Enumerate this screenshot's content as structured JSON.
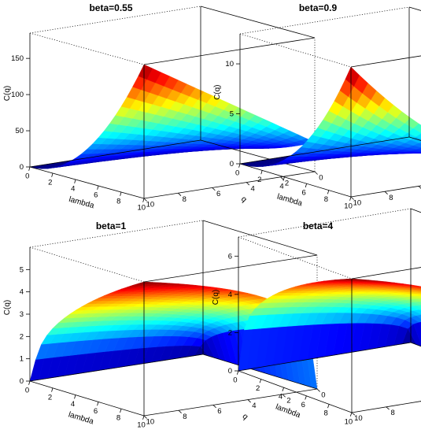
{
  "chart_data": [
    {
      "type": "surface3d",
      "title": "beta=0.55",
      "beta": 0.55,
      "xlabel": "lambda",
      "ylabel": "q",
      "zlabel": "C(q)",
      "x_range": [
        0,
        10
      ],
      "y_range": [
        0,
        10
      ],
      "z_range": [
        0,
        185
      ],
      "x_ticks": [
        0,
        2,
        4,
        6,
        8,
        10
      ],
      "y_ticks": [
        0,
        2,
        4,
        6,
        8,
        10
      ],
      "z_ticks": [
        0,
        50,
        100,
        150
      ],
      "corner_values": {
        "lambda0_q0": 0,
        "lambda10_q0": 185,
        "lambda0_q10": 0,
        "lambda10_q10": 40
      },
      "colormap": "jet"
    },
    {
      "type": "surface3d",
      "title": "beta=0.9",
      "beta": 0.9,
      "xlabel": "lambda",
      "ylabel": "q",
      "zlabel": "C(q)",
      "x_range": [
        0,
        10
      ],
      "y_range": [
        0,
        10
      ],
      "z_range": [
        0,
        13
      ],
      "x_ticks": [
        0,
        2,
        4,
        6,
        8,
        10
      ],
      "y_ticks": [
        0,
        2,
        4,
        6,
        8,
        10
      ],
      "z_ticks": [
        0,
        5,
        10
      ],
      "corner_values": {
        "lambda0_q0": 0,
        "lambda10_q0": 13,
        "lambda0_q10": 0,
        "lambda10_q10": 1.3
      },
      "colormap": "jet"
    },
    {
      "type": "surface3d",
      "title": "beta=1",
      "beta": 1,
      "xlabel": "lambda",
      "ylabel": "q",
      "zlabel": "C(q)",
      "x_range": [
        0,
        10
      ],
      "y_range": [
        0,
        10
      ],
      "z_range": [
        0,
        6
      ],
      "x_ticks": [
        0,
        2,
        4,
        6,
        8,
        10
      ],
      "y_ticks": [
        0,
        2,
        4,
        6,
        8,
        10
      ],
      "z_ticks": [
        0,
        1,
        2,
        3,
        4,
        5
      ],
      "corner_values": {
        "lambda0_q0": 0,
        "lambda10_q0": 6,
        "lambda0_q10": 0,
        "lambda10_q10": 0.05
      },
      "colormap": "jet"
    },
    {
      "type": "surface3d",
      "title": "beta=4",
      "beta": 4,
      "xlabel": "lambda",
      "ylabel": "q",
      "zlabel": "C(q)",
      "x_range": [
        0,
        10
      ],
      "y_range": [
        0,
        10
      ],
      "z_range": [
        0,
        7
      ],
      "x_ticks": [
        0,
        2,
        4,
        6,
        8,
        10
      ],
      "y_ticks": [
        0,
        2,
        4,
        6,
        8,
        10
      ],
      "z_ticks": [
        0,
        2,
        4,
        6
      ],
      "corner_values": {
        "lambda0_q0": 0,
        "lambda10_q0": 7,
        "lambda0_q10": 0,
        "lambda10_q10": 0.05
      },
      "colormap": "jet"
    }
  ]
}
